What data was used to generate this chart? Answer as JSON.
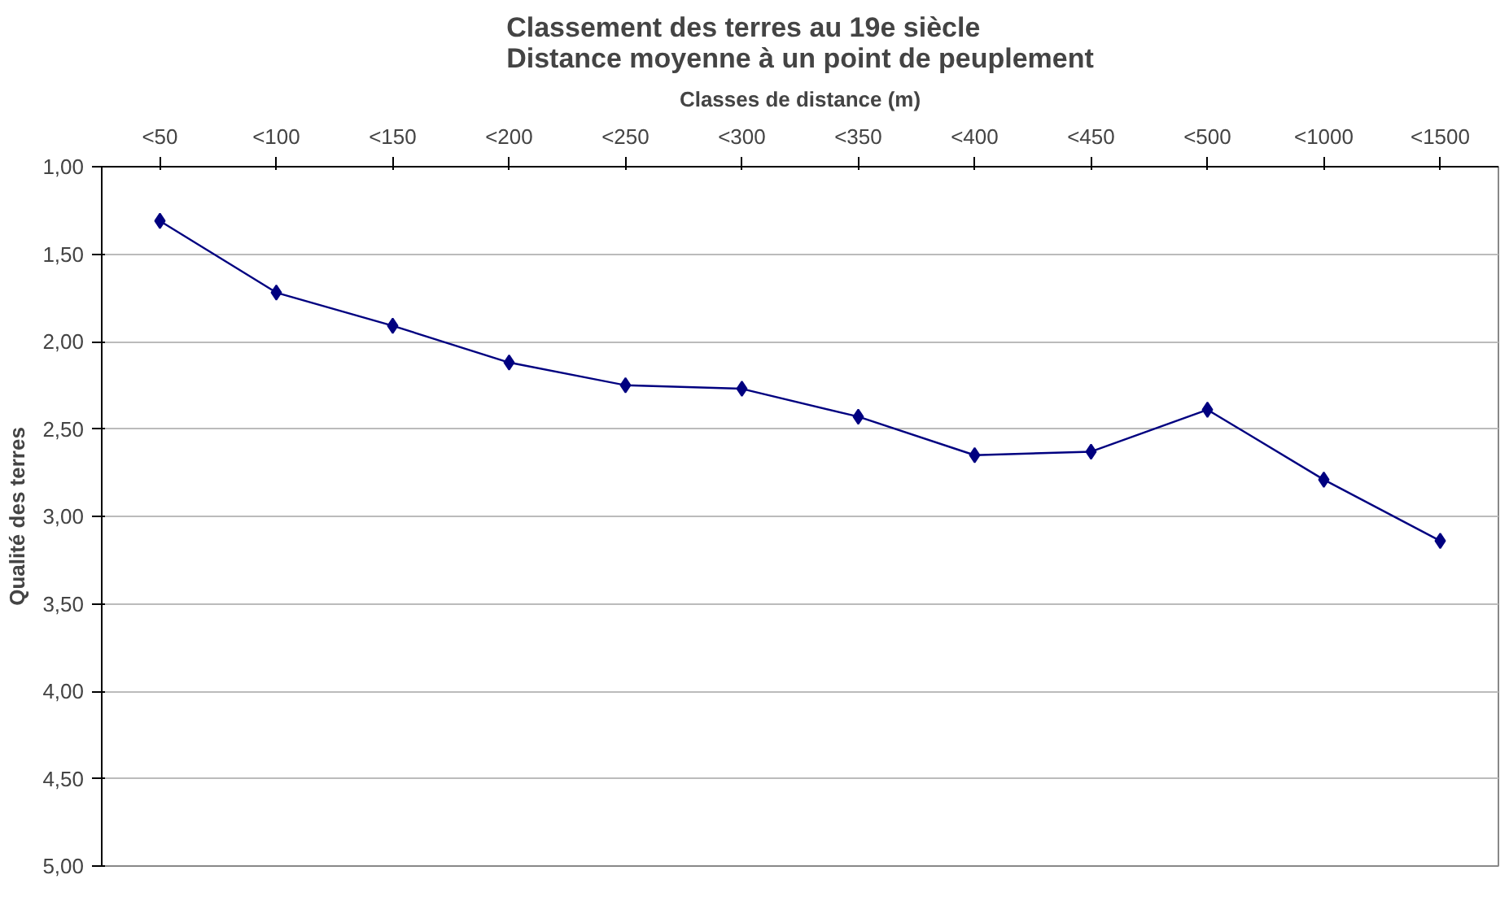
{
  "chart_data": {
    "type": "line",
    "title": "Classement des terres au 19e siècle\nDistance moyenne à un point de peuplement",
    "xlabel": "Classes de distance (m)",
    "ylabel": "Qualité des terres",
    "categories": [
      "<50",
      "<100",
      "<150",
      "<200",
      "<250",
      "<300",
      "<350",
      "<400",
      "<450",
      "<500",
      "<1000",
      "<1500"
    ],
    "series": [
      {
        "color": "#000080",
        "values": [
          1.31,
          1.72,
          1.91,
          2.12,
          2.25,
          2.27,
          2.43,
          2.65,
          2.63,
          2.39,
          2.79,
          3.14
        ]
      }
    ],
    "ylim": [
      5,
      1
    ],
    "yticks": [
      {
        "value": 1,
        "label": "1,00"
      },
      {
        "value": 1.5,
        "label": "1,50"
      },
      {
        "value": 2,
        "label": "2,00"
      },
      {
        "value": 2.5,
        "label": "2,50"
      },
      {
        "value": 3,
        "label": "3,00"
      },
      {
        "value": 3.5,
        "label": "3,50"
      },
      {
        "value": 4,
        "label": "4,00"
      },
      {
        "value": 4.5,
        "label": "4,50"
      },
      {
        "value": 5,
        "label": "5,00"
      }
    ],
    "grid": "y",
    "marker": "diamond",
    "line_style": "solid"
  }
}
